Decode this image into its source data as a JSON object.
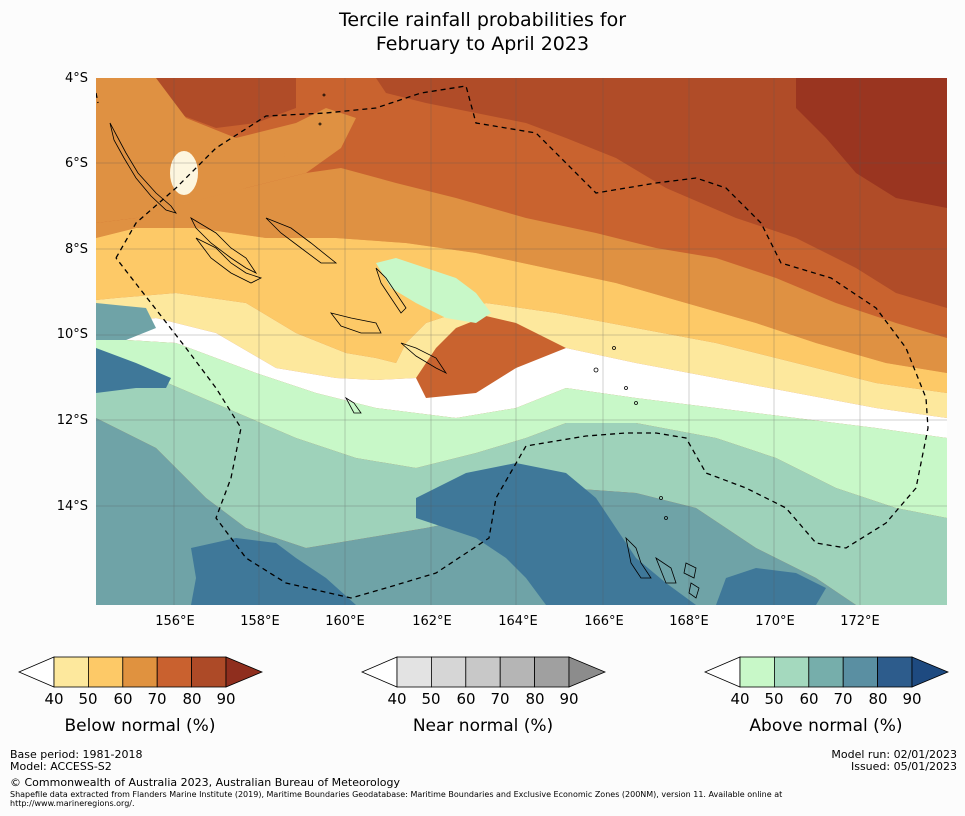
{
  "title": {
    "line1": "Tercile rainfall probabilities for",
    "line2": "February to April 2023"
  },
  "axes": {
    "lat_labels": [
      "4°S",
      "6°S",
      "8°S",
      "10°S",
      "12°S",
      "14°S"
    ],
    "lon_labels": [
      "156°E",
      "158°E",
      "160°E",
      "162°E",
      "164°E",
      "166°E",
      "168°E",
      "170°E",
      "172°E"
    ]
  },
  "legends": [
    {
      "label": "Below normal (%)",
      "ticks": [
        "40",
        "50",
        "60",
        "70",
        "80",
        "90"
      ],
      "colors": [
        "#ffffff",
        "#fde89d",
        "#fdc967",
        "#e0923f",
        "#c9612f",
        "#ad4a27",
        "#8f2e1e"
      ]
    },
    {
      "label": "Near normal (%)",
      "ticks": [
        "40",
        "50",
        "60",
        "70",
        "80",
        "90"
      ],
      "colors": [
        "#ffffff",
        "#e3e3e3",
        "#d6d6d6",
        "#c8c8c8",
        "#b5b5b5",
        "#a0a0a0",
        "#8c8c8c"
      ]
    },
    {
      "label": "Above normal (%)",
      "ticks": [
        "40",
        "50",
        "60",
        "70",
        "80",
        "90"
      ],
      "colors": [
        "#ffffff",
        "#c8f8c8",
        "#a4d9be",
        "#76aeab",
        "#5a8fa2",
        "#2d5c8c",
        "#1e4a80"
      ]
    }
  ],
  "footer": {
    "base_period": "Base period: 1981-2018",
    "model": "Model: ACCESS-S2",
    "model_run": "Model run: 02/01/2023",
    "issued": "Issued: 05/01/2023",
    "copyright": "© Commonwealth of Australia 2023, Australian Bureau of Meteorology",
    "shapefile_line1": "Shapefile data extracted from Flanders Marine Institute (2019), Maritime Boundaries Geodatabase: Maritime Boundaries and Exclusive Economic Zones (200NM), version 11. Available online at",
    "shapefile_line2": "http://www.marineregions.org/."
  },
  "colors": {
    "below_90": "#9a3520",
    "below_80": "#b04c28",
    "below_70": "#c9632f",
    "below_60": "#df9142",
    "below_50": "#fdc967",
    "below_40": "#fde89d",
    "white": "#ffffff",
    "above_40": "#c8f8c8",
    "above_50": "#9ed2ba",
    "above_60": "#6fa3a7",
    "above_70": "#3f7899"
  }
}
